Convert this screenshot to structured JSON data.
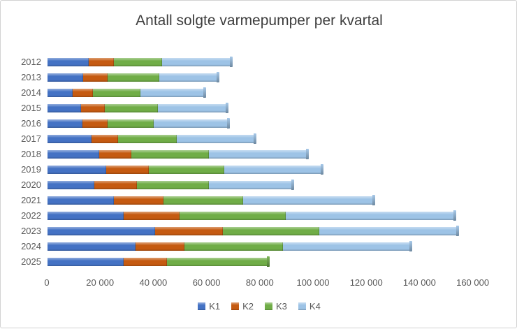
{
  "title": "Antall solgte varmepumper per kvartal",
  "colors": {
    "k1": "#4472C4",
    "k2": "#C55A11",
    "k3": "#70AD47",
    "k4": "#9DC3E6",
    "title_text": "#3f3f3f",
    "axis_text": "#595959",
    "frame_border": "#d2d2d2"
  },
  "chart_data": {
    "type": "bar",
    "orientation": "horizontal",
    "stacked": true,
    "grid": false,
    "legend_position": "bottom",
    "title": "Antall solgte varmepumper per kvartal",
    "xlabel": "",
    "ylabel": "",
    "xlim": [
      0,
      160000
    ],
    "x_ticks": [
      "0",
      "20 000",
      "40 000",
      "60 000",
      "80 000",
      "100 000",
      "120 000",
      "140 000",
      "160 000"
    ],
    "x_tick_values": [
      0,
      20000,
      40000,
      60000,
      80000,
      100000,
      120000,
      140000,
      160000
    ],
    "categories": [
      "2012",
      "2013",
      "2014",
      "2015",
      "2016",
      "2017",
      "2018",
      "2019",
      "2020",
      "2021",
      "2022",
      "2023",
      "2024",
      "2025"
    ],
    "series": [
      {
        "name": "K1",
        "color": "#4472C4",
        "values": [
          15500,
          13500,
          9500,
          12500,
          13000,
          16500,
          19500,
          22000,
          17500,
          25000,
          28500,
          40500,
          33000,
          28500
        ]
      },
      {
        "name": "K2",
        "color": "#C55A11",
        "values": [
          9500,
          9000,
          7500,
          9000,
          9500,
          10000,
          12000,
          16000,
          16000,
          18500,
          21000,
          25500,
          18500,
          16500
        ]
      },
      {
        "name": "K3",
        "color": "#70AD47",
        "values": [
          18000,
          19500,
          18000,
          20000,
          17500,
          22000,
          29000,
          28500,
          27000,
          30000,
          40000,
          36000,
          37000,
          37500
        ]
      },
      {
        "name": "K4",
        "color": "#9DC3E6",
        "values": [
          25500,
          21500,
          23500,
          25500,
          27500,
          29000,
          36500,
          36000,
          31000,
          48500,
          63000,
          51500,
          47500,
          0
        ]
      }
    ],
    "totals": [
      68500,
      63500,
      58500,
      67000,
      67500,
      77500,
      97000,
      102500,
      91500,
      122000,
      152500,
      153500,
      136000,
      82500
    ]
  }
}
